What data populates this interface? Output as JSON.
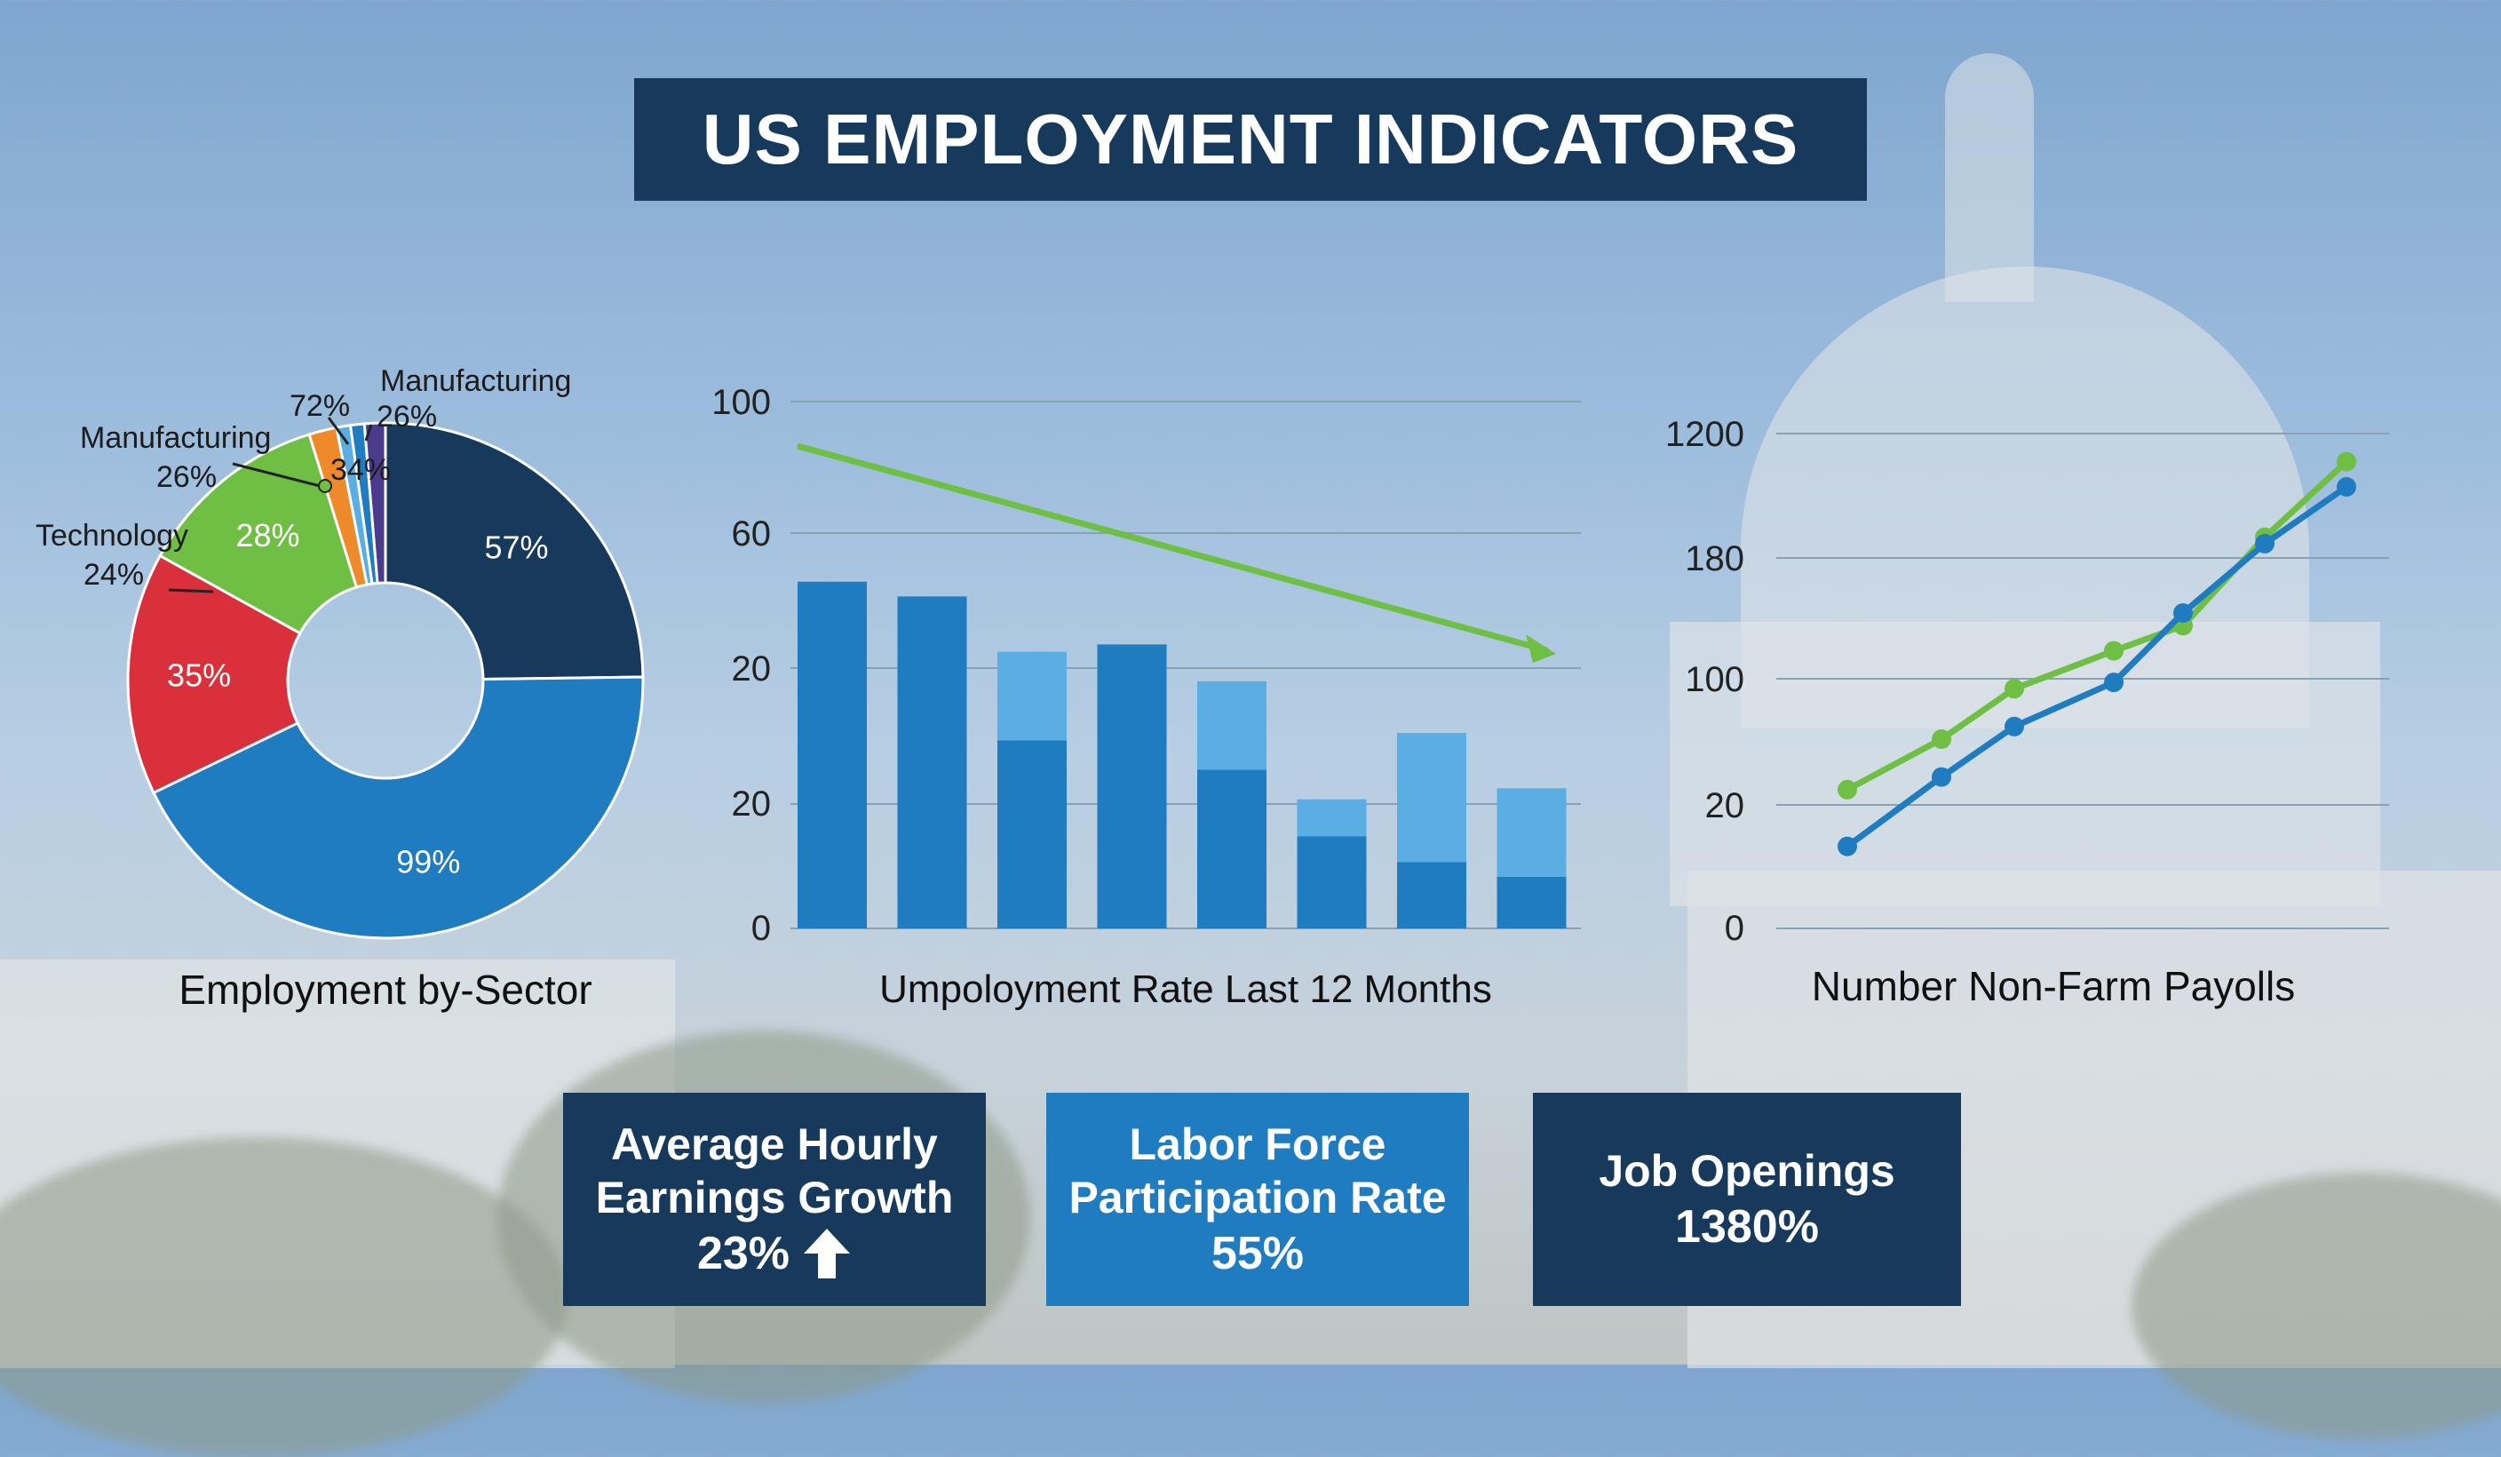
{
  "title": "US EMPLOYMENT INDICATORS",
  "colors": {
    "navy": "#173a5c",
    "blue": "#1f7cc1",
    "light_blue": "#5aaee3",
    "green": "#6fbf44",
    "red": "#d9303c",
    "orange": "#ef8a2b",
    "purple": "#4b3b8c"
  },
  "chart_data": [
    {
      "type": "pie",
      "title": "Employment by-Sector",
      "slices": [
        {
          "label": "57%",
          "value": 57,
          "color": "#173a5c"
        },
        {
          "label": "99%",
          "value": 99,
          "color": "#1f7cc1"
        },
        {
          "label": "35%",
          "value": 35,
          "color": "#d9303c"
        },
        {
          "label": "28%",
          "value": 28,
          "color": "#6fbf44"
        },
        {
          "label": "",
          "value": 4,
          "color": "#ef8a2b"
        },
        {
          "label": "",
          "value": 2,
          "color": "#5aaee3"
        },
        {
          "label": "",
          "value": 2,
          "color": "#1f7cc1"
        },
        {
          "label": "",
          "value": 3,
          "color": "#4b3b8c"
        }
      ],
      "callouts": [
        {
          "name": "Manufacturing",
          "pct": "26%"
        },
        {
          "name": "Manufacturing",
          "pct": "26%"
        },
        {
          "name": "Technology",
          "pct": "24%"
        },
        {
          "name": "",
          "pct": "72%"
        },
        {
          "name": "",
          "pct": "34%"
        }
      ]
    },
    {
      "type": "bar",
      "title": "Umpoloyment Rate Last 12 Months",
      "y_ticks": [
        "100",
        "60",
        "20",
        "20",
        "0"
      ],
      "bars": [
        {
          "dark": 47,
          "light": 0
        },
        {
          "dark": 45,
          "light": 0
        },
        {
          "dark": 25.5,
          "light": 12
        },
        {
          "dark": 38.5,
          "light": 0
        },
        {
          "dark": 21.5,
          "light": 12
        },
        {
          "dark": 12.5,
          "light": 5
        },
        {
          "dark": 9,
          "light": 17.5
        },
        {
          "dark": 7,
          "light": 12
        }
      ],
      "trend": {
        "start": 72,
        "end": 41
      }
    },
    {
      "type": "line",
      "title": "Number Non-Farm Payolls",
      "y_ticks": [
        "1200",
        "180",
        "100",
        "20",
        "0"
      ],
      "series": [
        {
          "color": "#6fbf44",
          "values": [
            1.1,
            1.5,
            1.9,
            2.2,
            2.4,
            3.1,
            3.7
          ]
        },
        {
          "color": "#1f7cc1",
          "values": [
            0.65,
            1.2,
            1.6,
            1.95,
            2.5,
            3.05,
            3.5
          ]
        }
      ]
    }
  ],
  "kpis": [
    {
      "label_line1": "Average Hourly",
      "label_line2": "Earnings Growth",
      "value": "23%",
      "icon": "arrow-up-icon",
      "bg": "#173a5c"
    },
    {
      "label_line1": "Labor Force",
      "label_line2": "Participation Rate",
      "value": "55%",
      "bg": "#1f7cc1"
    },
    {
      "label_line1": "Job Openings",
      "value": "1380%",
      "bg": "#173a5c"
    }
  ]
}
